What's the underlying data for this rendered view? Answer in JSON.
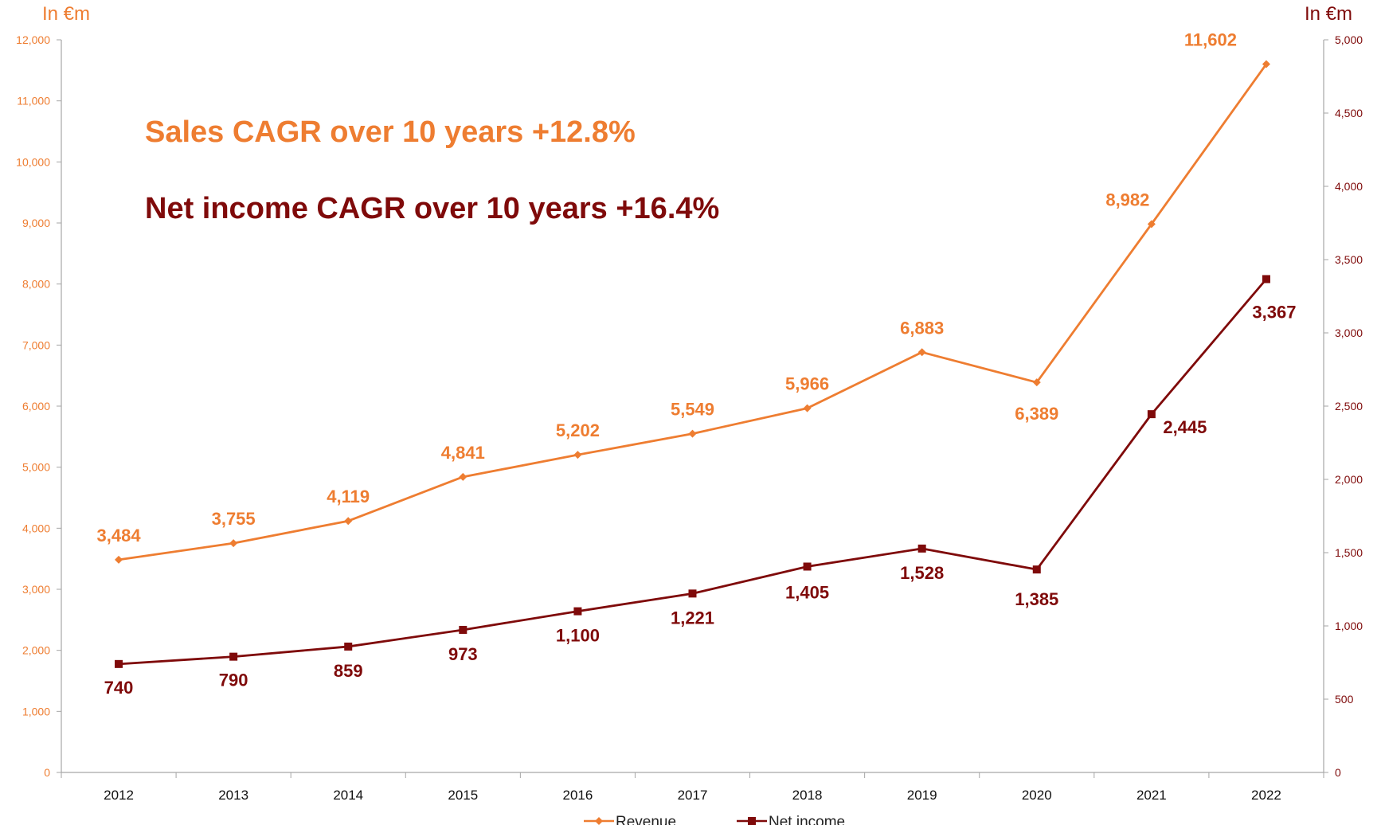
{
  "chart_data": {
    "type": "line",
    "categories": [
      "2012",
      "2013",
      "2014",
      "2015",
      "2016",
      "2017",
      "2018",
      "2019",
      "2020",
      "2021",
      "2022"
    ],
    "series": [
      {
        "name": "Revenue",
        "axis": "left",
        "color": "#EE7D31",
        "marker": "diamond",
        "values": [
          3484,
          3755,
          4119,
          4841,
          5202,
          5549,
          5966,
          6883,
          6389,
          8982,
          11602
        ],
        "labels": [
          "3,484",
          "3,755",
          "4,119",
          "4,841",
          "5,202",
          "5,549",
          "5,966",
          "6,883",
          "6,389",
          "8,982",
          "11,602"
        ]
      },
      {
        "name": "Net income",
        "axis": "right",
        "color": "#7F0A0A",
        "marker": "square",
        "values": [
          740,
          790,
          859,
          973,
          1100,
          1221,
          1405,
          1528,
          1385,
          2445,
          3367
        ],
        "labels": [
          "740",
          "790",
          "859",
          "973",
          "1,100",
          "1,221",
          "1,405",
          "1,528",
          "1,385",
          "2,445",
          "3,367"
        ]
      }
    ],
    "left_axis": {
      "label": "In €m",
      "ylim": [
        0,
        12000
      ],
      "ticks": [
        "0",
        "1,000",
        "2,000",
        "3,000",
        "4,000",
        "5,000",
        "6,000",
        "7,000",
        "8,000",
        "9,000",
        "10,000",
        "11,000",
        "12,000"
      ],
      "color": "#EE7D31"
    },
    "right_axis": {
      "label": "In €m",
      "ylim": [
        0,
        5000
      ],
      "ticks": [
        "0",
        "500",
        "1,000",
        "1,500",
        "2,000",
        "2,500",
        "3,000",
        "3,500",
        "4,000",
        "4,500",
        "5,000"
      ],
      "color": "#7F0A0A"
    },
    "annotations": [
      {
        "text": "Sales CAGR over 10 years  +12.8%",
        "color": "#EE7D31"
      },
      {
        "text": "Net income CAGR over 10 years  +16.4%",
        "color": "#7F0A0A"
      }
    ],
    "legend": {
      "placement": "bottom-center",
      "items": [
        "Revenue",
        "Net income"
      ]
    },
    "grid": false
  }
}
